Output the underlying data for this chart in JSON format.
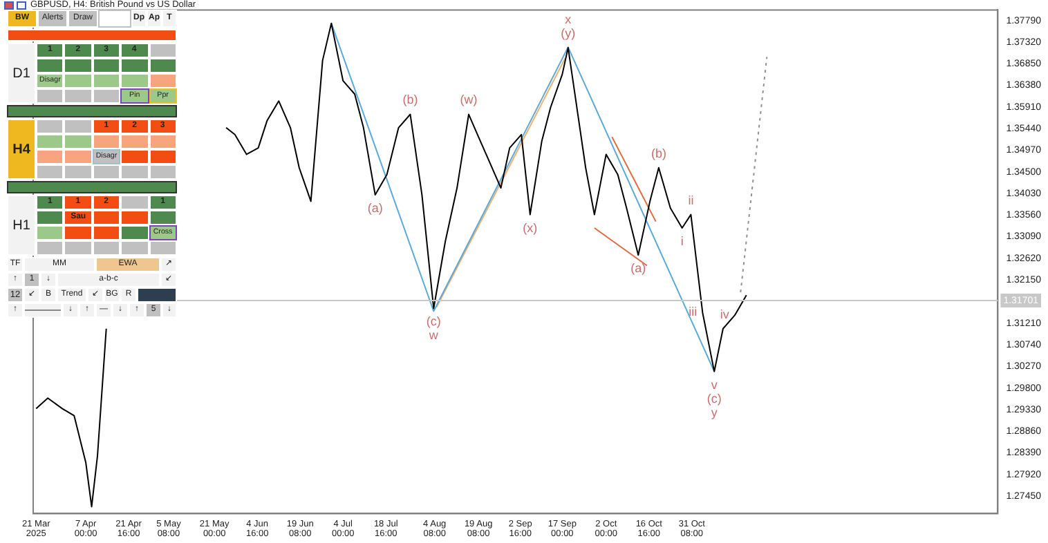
{
  "chart_data": [
    {
      "type": "line",
      "title": "GBPUSD, H4:  British Pound vs US Dollar",
      "xlim": [
        "2025-03-20",
        "2026-02-13"
      ],
      "xticks": [
        {
          "value": "2025-03-21",
          "label": "21 Mar 2025"
        },
        {
          "value": "2025-04-07T00:00",
          "label": "7 Apr 00:00"
        },
        {
          "value": "2025-04-21T16:00",
          "label": "21 Apr 16:00"
        },
        {
          "value": "2025-05-05T08:00",
          "label": "5 May 08:00"
        },
        {
          "value": "2025-05-21T00:00",
          "label": "21 May 00:00"
        },
        {
          "value": "2025-06-04T16:00",
          "label": "4 Jun 16:00"
        },
        {
          "value": "2025-06-19T08:00",
          "label": "19 Jun 08:00"
        },
        {
          "value": "2025-07-04T00:00",
          "label": "4 Jul 00:00"
        },
        {
          "value": "2025-07-18T16:00",
          "label": "18 Jul 16:00"
        },
        {
          "value": "2025-08-04T08:00",
          "label": "4 Aug 08:00"
        },
        {
          "value": "2025-08-19T08:00",
          "label": "19 Aug 08:00"
        },
        {
          "value": "2025-09-02T16:00",
          "label": "2 Sep 16:00"
        },
        {
          "value": "2025-09-17T00:00",
          "label": "17 Sep 00:00"
        },
        {
          "value": "2025-10-02T00:00",
          "label": "2 Oct 00:00"
        },
        {
          "value": "2025-10-16T16:00",
          "label": "16 Oct 16:00"
        },
        {
          "value": "2025-10-31T08:00",
          "label": "31 Oct 08:00"
        }
      ],
      "ylim": [
        1.2707,
        1.3802
      ],
      "yticks": [
        {
          "value": 1.2745,
          "label": "1.27450"
        },
        {
          "value": 1.2792,
          "label": "1.27920"
        },
        {
          "value": 1.2839,
          "label": "1.28390"
        },
        {
          "value": 1.2886,
          "label": "1.28860"
        },
        {
          "value": 1.2933,
          "label": "1.29330"
        },
        {
          "value": 1.298,
          "label": "1.29800"
        },
        {
          "value": 1.3027,
          "label": "1.30270"
        },
        {
          "value": 1.3074,
          "label": "1.30740"
        },
        {
          "value": 1.3121,
          "label": "1.31210"
        },
        {
          "value": 1.3168,
          "label": null
        },
        {
          "value": 1.3215,
          "label": "1.32150"
        },
        {
          "value": 1.3262,
          "label": "1.32620"
        },
        {
          "value": 1.3309,
          "label": "1.33090"
        },
        {
          "value": 1.3356,
          "label": "1.33560"
        },
        {
          "value": 1.3403,
          "label": "1.34030"
        },
        {
          "value": 1.345,
          "label": "1.34500"
        },
        {
          "value": 1.3497,
          "label": "1.34970"
        },
        {
          "value": 1.3544,
          "label": "1.35440"
        },
        {
          "value": 1.3591,
          "label": "1.35910"
        },
        {
          "value": 1.3638,
          "label": "1.36380"
        },
        {
          "value": 1.3685,
          "label": "1.36850"
        },
        {
          "value": 1.3732,
          "label": "1.37320"
        },
        {
          "value": 1.3779,
          "label": "1.37790"
        }
      ],
      "grid": false,
      "legend": false,
      "series": [
        {
          "color": "#000000",
          "x": [
            "2025-03-21",
            "2025-03-25",
            "2025-03-30",
            "2025-04-03",
            "2025-04-07",
            "2025-04-09",
            "2025-04-11",
            "2025-04-14",
            "2025-04-30",
            "2025-05-25",
            "2025-05-28",
            "2025-06-01",
            "2025-06-05",
            "2025-06-08",
            "2025-06-12",
            "2025-06-16",
            "2025-06-19",
            "2025-06-23",
            "2025-06-27",
            "2025-06-30",
            "2025-07-04",
            "2025-07-08",
            "2025-07-11",
            "2025-07-15",
            "2025-07-19",
            "2025-07-23",
            "2025-07-27",
            "2025-07-31",
            "2025-08-04",
            "2025-08-08",
            "2025-08-12",
            "2025-08-16",
            "2025-08-19",
            "2025-08-23",
            "2025-08-27",
            "2025-08-30",
            "2025-09-03",
            "2025-09-06",
            "2025-09-10",
            "2025-09-13",
            "2025-09-17",
            "2025-09-19",
            "2025-09-21",
            "2025-09-25",
            "2025-09-28",
            "2025-10-02",
            "2025-10-06",
            "2025-10-09",
            "2025-10-13",
            "2025-10-17",
            "2025-10-20",
            "2025-10-24",
            "2025-10-28",
            "2025-10-31",
            "2025-11-04",
            "2025-11-08",
            "2025-11-11",
            "2025-11-15",
            "2025-11-19"
          ],
          "values": [
            1.2935,
            1.2958,
            1.2935,
            1.292,
            1.2818,
            1.2722,
            1.2833,
            1.3109,
            null,
            1.3546,
            1.3531,
            1.3488,
            1.3502,
            1.3561,
            1.3604,
            1.3546,
            1.3459,
            1.3386,
            1.3692,
            1.3773,
            1.3648,
            1.3619,
            1.3546,
            1.34,
            1.3444,
            1.3546,
            1.3575,
            1.34,
            1.3153,
            1.3299,
            1.3415,
            1.3575,
            1.3531,
            1.3473,
            1.3415,
            1.3502,
            1.3531,
            1.3357,
            1.3517,
            1.359,
            1.3662,
            1.372,
            1.3633,
            1.3459,
            1.3357,
            1.3488,
            1.3444,
            1.3371,
            1.3269,
            1.3386,
            1.3459,
            1.3371,
            1.3328,
            1.3357,
            1.3144,
            1.3016,
            1.3109,
            1.3138,
            1.3182
          ]
        },
        {
          "color": "#5aa9d6",
          "x": [
            "2025-06-30",
            "2025-08-04",
            "2025-09-19",
            "2025-11-08"
          ],
          "values": [
            1.3773,
            1.3147,
            1.3721,
            1.3016
          ]
        },
        {
          "color": "#f0b070",
          "x": [
            "2025-08-05",
            "2025-09-18"
          ],
          "values": [
            1.3156,
            1.3697
          ]
        },
        {
          "color": "#e06a40",
          "x": [
            "2025-10-04",
            "2025-10-19"
          ],
          "values": [
            1.3526,
            1.3342
          ]
        },
        {
          "color": "#e06a40",
          "x": [
            "2025-09-28",
            "2025-10-16"
          ],
          "values": [
            1.3328,
            1.3246
          ]
        },
        {
          "color": "#909090",
          "line_style": "dotted",
          "x": [
            "2025-11-17",
            "2025-11-26"
          ],
          "values": [
            1.3188,
            1.37
          ]
        }
      ],
      "ref_lines": [
        {
          "axis": "y",
          "value": 1.31701,
          "label": "1.31701",
          "color": "#c8c8c8"
        }
      ],
      "annotations": [
        {
          "text": "(a)",
          "x": "2025-07-15",
          "y": 1.34
        },
        {
          "text": "(b)",
          "x": "2025-07-27",
          "y": 1.3575
        },
        {
          "text": "(c)",
          "x": "2025-08-04",
          "y": 1.3153
        },
        {
          "text": "w",
          "x": "2025-08-04",
          "y": 1.3153
        },
        {
          "text": "(w)",
          "x": "2025-08-16",
          "y": 1.3575
        },
        {
          "text": "(x)",
          "x": "2025-09-06",
          "y": 1.3357
        },
        {
          "text": "(y)",
          "x": "2025-09-19",
          "y": 1.372
        },
        {
          "text": "x",
          "x": "2025-09-19",
          "y": 1.372
        },
        {
          "text": "(b)",
          "x": "2025-10-20",
          "y": 1.3459
        },
        {
          "text": "(a)",
          "x": "2025-10-13",
          "y": 1.3269
        },
        {
          "text": "ii",
          "x": "2025-10-31",
          "y": 1.3357
        },
        {
          "text": "i",
          "x": "2025-10-28",
          "y": 1.3328
        },
        {
          "text": "iii",
          "x": "2025-11-04",
          "y": 1.3144
        },
        {
          "text": "iv",
          "x": "2025-11-15",
          "y": 1.3138
        },
        {
          "text": "v",
          "x": "2025-11-08",
          "y": 1.3016
        },
        {
          "text": "(c)",
          "x": "2025-11-08",
          "y": 1.3016
        },
        {
          "text": "y",
          "x": "2025-11-08",
          "y": 1.3016
        }
      ]
    },
    {
      "type": "other",
      "annotations": [
        "BW",
        "Alerts",
        "Draw",
        "Dp",
        "Ap",
        "T",
        "D1",
        "1 2 3 4",
        "Disagr",
        "Pin",
        "Ppr",
        "H4",
        "1 2 3",
        "Disagr",
        "H1",
        "1 1 2",
        "1",
        "Sau",
        "Cross",
        "TF",
        "MM",
        "EWA",
        "↗",
        "↑",
        "1",
        "↓",
        "a-b-c",
        "↙",
        "12",
        "↙",
        "B",
        "Trend",
        "↙",
        "BG",
        "R",
        "↑",
        "↓",
        "↑",
        "—",
        "↓",
        "↑",
        "5",
        "↓"
      ]
    }
  ]
}
